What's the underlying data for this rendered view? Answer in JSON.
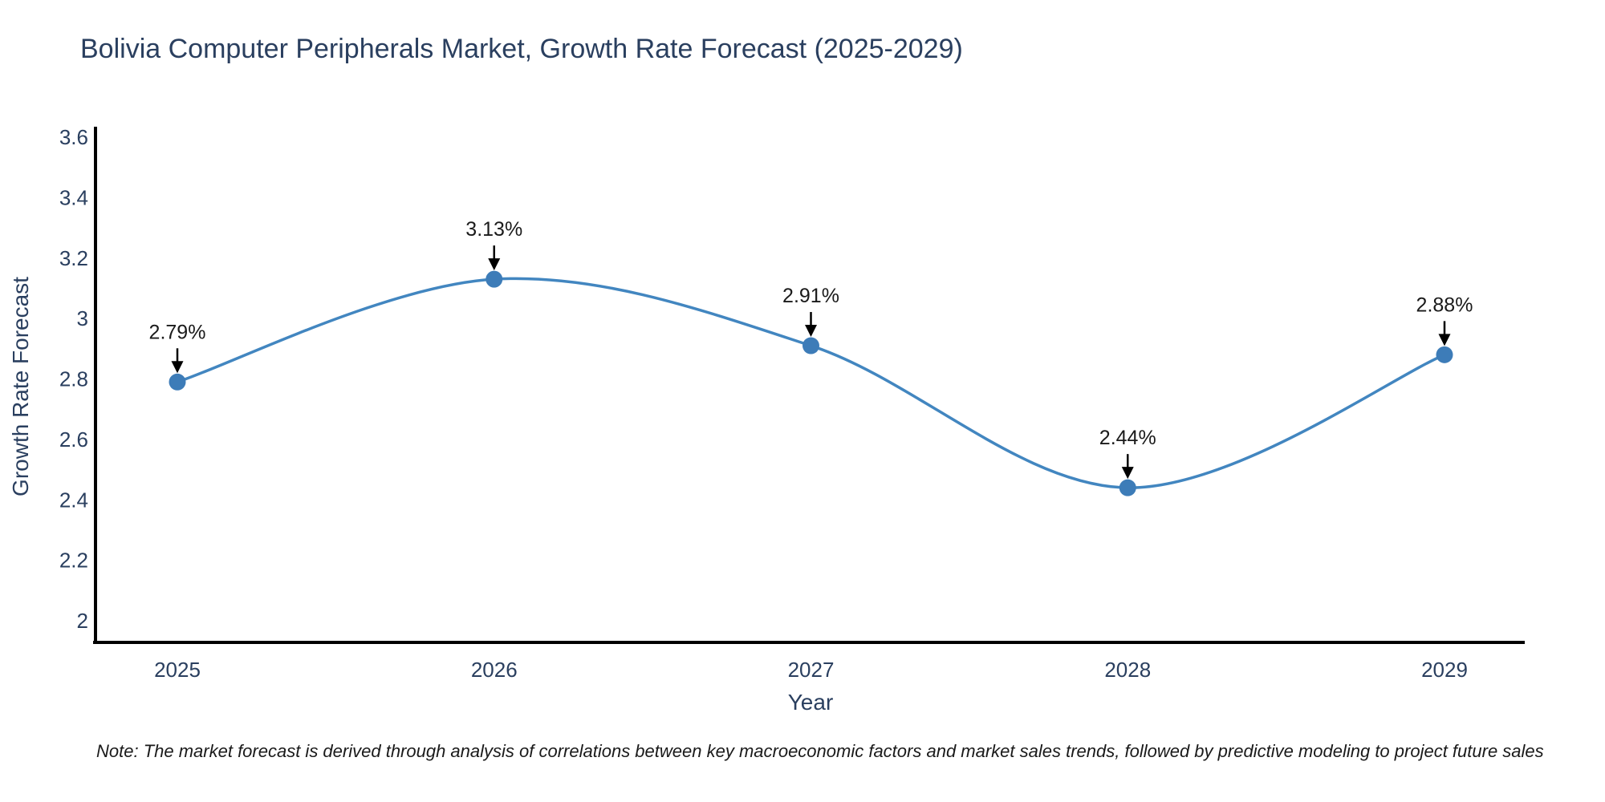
{
  "chart_data": {
    "type": "line",
    "title": "Bolivia Computer Peripherals Market, Growth Rate Forecast (2025-2029)",
    "xlabel": "Year",
    "ylabel": "Growth Rate Forecast",
    "categories": [
      "2025",
      "2026",
      "2027",
      "2028",
      "2029"
    ],
    "series": [
      {
        "name": "Growth Rate Forecast",
        "values": [
          2.79,
          3.13,
          2.91,
          2.44,
          2.88
        ],
        "point_labels": [
          "2.79%",
          "3.13%",
          "2.91%",
          "2.44%",
          "2.88%"
        ]
      }
    ],
    "y_ticks": [
      {
        "value": 3.6,
        "label": "3.6"
      },
      {
        "value": 3.4,
        "label": "3.4"
      },
      {
        "value": 3.2,
        "label": "3.2"
      },
      {
        "value": 3.0,
        "label": "3"
      },
      {
        "value": 2.8,
        "label": "2.8"
      },
      {
        "value": 2.6,
        "label": "2.6"
      },
      {
        "value": 2.4,
        "label": "2.4"
      },
      {
        "value": 2.2,
        "label": "2.2"
      },
      {
        "value": 2.0,
        "label": "2"
      }
    ],
    "ylim": [
      1.93,
      3.64
    ],
    "line_shape": "spline",
    "grid": false,
    "legend_position": "none",
    "annotations_have_arrows": true
  },
  "note": {
    "text": "Note: The market forecast is derived through analysis of correlations between key macroeconomic factors and market sales trends, followed by predictive modeling to project future sales"
  },
  "colors": {
    "line": "#4286c0",
    "marker": "#3d7cb8",
    "axis_line": "#000000",
    "chart_text": "#2a3f5f",
    "annotation_text": "#1a1a1a",
    "arrow": "#000000",
    "background": "#ffffff"
  }
}
